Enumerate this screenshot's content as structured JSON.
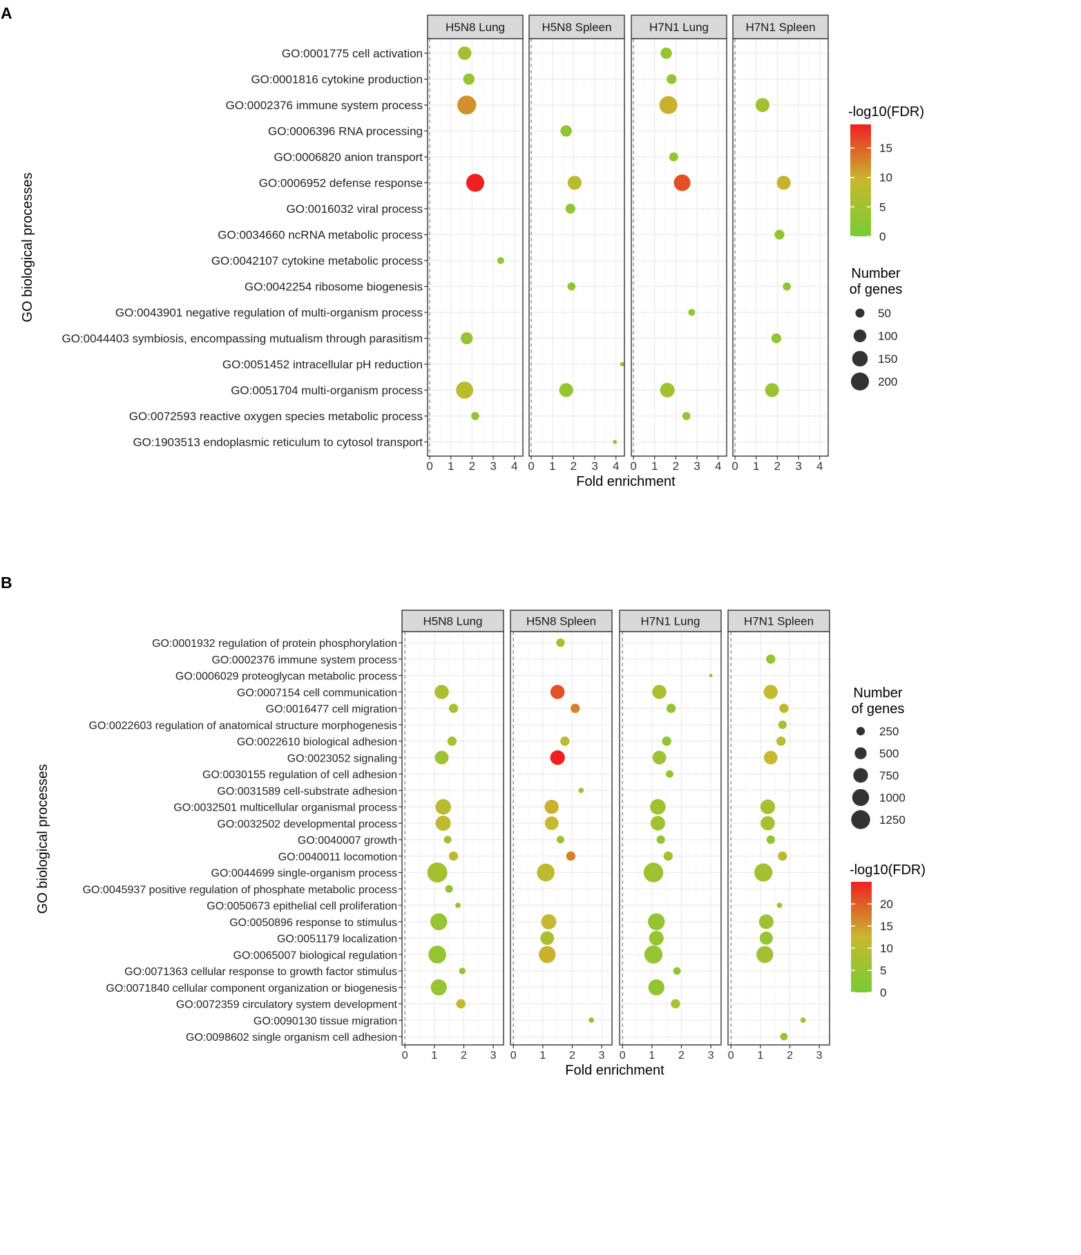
{
  "panel_labels": [
    "A",
    "B"
  ],
  "colors": {
    "low": "#77CC33",
    "mid": "#C8B830",
    "high": "#F02020",
    "strip_bg": "#D9D9D9",
    "grid": "#EBEBEB",
    "frame": "#333333",
    "dash": "#888888"
  },
  "chart_data": [
    {
      "id": "A",
      "type": "scatter",
      "panel_label": "A",
      "xlabel": "Fold enrichment",
      "ylabel": "GO biological processes",
      "xlim": [
        -0.1,
        4.4
      ],
      "xticks": [
        0,
        1,
        2,
        3,
        4
      ],
      "facets": [
        "H5N8 Lung",
        "H5N8 Spleen",
        "H7N1 Lung",
        "H7N1 Spleen"
      ],
      "categories": [
        "GO:0001775 cell activation",
        "GO:0001816 cytokine production",
        "GO:0002376 immune system process",
        "GO:0006396 RNA processing",
        "GO:0006820 anion transport",
        "GO:0006952 defense response",
        "GO:0016032 viral process",
        "GO:0034660 ncRNA metabolic process",
        "GO:0042107 cytokine metabolic process",
        "GO:0042254 ribosome biogenesis",
        "GO:0043901 negative regulation of multi-organism process",
        "GO:0044403 symbiosis, encompassing mutualism through parasitism",
        "GO:0051452 intracellular pH reduction",
        "GO:0051704 multi-organism process",
        "GO:0072593 reactive oxygen species metabolic process",
        "GO:1903513 endoplasmic reticulum to cytosol transport"
      ],
      "color_legend": {
        "title": "-log10(FDR)",
        "min": 0,
        "max": 19,
        "ticks": [
          0,
          5,
          10,
          15
        ]
      },
      "size_legend": {
        "title": [
          "Number",
          "of genes"
        ],
        "values": [
          50,
          100,
          150,
          200
        ],
        "max": 230
      },
      "points": [
        {
          "facet": 0,
          "cat": 0,
          "x": 1.65,
          "n": 110,
          "fdr": 5
        },
        {
          "facet": 0,
          "cat": 1,
          "x": 1.85,
          "n": 80,
          "fdr": 4
        },
        {
          "facet": 0,
          "cat": 2,
          "x": 1.75,
          "n": 220,
          "fdr": 12
        },
        {
          "facet": 0,
          "cat": 5,
          "x": 2.15,
          "n": 200,
          "fdr": 19
        },
        {
          "facet": 0,
          "cat": 8,
          "x": 3.35,
          "n": 30,
          "fdr": 3
        },
        {
          "facet": 0,
          "cat": 11,
          "x": 1.75,
          "n": 90,
          "fdr": 4
        },
        {
          "facet": 0,
          "cat": 13,
          "x": 1.65,
          "n": 180,
          "fdr": 8
        },
        {
          "facet": 0,
          "cat": 14,
          "x": 2.15,
          "n": 40,
          "fdr": 3
        },
        {
          "facet": 1,
          "cat": 3,
          "x": 1.65,
          "n": 80,
          "fdr": 3
        },
        {
          "facet": 1,
          "cat": 5,
          "x": 2.05,
          "n": 120,
          "fdr": 8
        },
        {
          "facet": 1,
          "cat": 6,
          "x": 1.85,
          "n": 60,
          "fdr": 3
        },
        {
          "facet": 1,
          "cat": 9,
          "x": 1.9,
          "n": 40,
          "fdr": 3
        },
        {
          "facet": 1,
          "cat": 12,
          "x": 4.3,
          "n": 12,
          "fdr": 2
        },
        {
          "facet": 1,
          "cat": 13,
          "x": 1.65,
          "n": 120,
          "fdr": 4
        },
        {
          "facet": 1,
          "cat": 15,
          "x": 3.95,
          "n": 10,
          "fdr": 2
        },
        {
          "facet": 2,
          "cat": 0,
          "x": 1.55,
          "n": 80,
          "fdr": 4
        },
        {
          "facet": 2,
          "cat": 1,
          "x": 1.8,
          "n": 60,
          "fdr": 3
        },
        {
          "facet": 2,
          "cat": 2,
          "x": 1.65,
          "n": 200,
          "fdr": 10
        },
        {
          "facet": 2,
          "cat": 4,
          "x": 1.9,
          "n": 50,
          "fdr": 3
        },
        {
          "facet": 2,
          "cat": 5,
          "x": 2.3,
          "n": 170,
          "fdr": 16
        },
        {
          "facet": 2,
          "cat": 10,
          "x": 2.75,
          "n": 30,
          "fdr": 3
        },
        {
          "facet": 2,
          "cat": 13,
          "x": 1.6,
          "n": 130,
          "fdr": 5
        },
        {
          "facet": 2,
          "cat": 14,
          "x": 2.5,
          "n": 40,
          "fdr": 3
        },
        {
          "facet": 3,
          "cat": 2,
          "x": 1.3,
          "n": 120,
          "fdr": 5
        },
        {
          "facet": 3,
          "cat": 5,
          "x": 2.3,
          "n": 120,
          "fdr": 10
        },
        {
          "facet": 3,
          "cat": 7,
          "x": 2.1,
          "n": 60,
          "fdr": 3
        },
        {
          "facet": 3,
          "cat": 9,
          "x": 2.45,
          "n": 40,
          "fdr": 3
        },
        {
          "facet": 3,
          "cat": 11,
          "x": 1.95,
          "n": 60,
          "fdr": 3
        },
        {
          "facet": 3,
          "cat": 13,
          "x": 1.75,
          "n": 120,
          "fdr": 4
        }
      ]
    },
    {
      "id": "B",
      "type": "scatter",
      "panel_label": "B",
      "xlabel": "Fold enrichment",
      "ylabel": "GO biological processes",
      "xlim": [
        -0.1,
        3.35
      ],
      "xticks": [
        0,
        1,
        2,
        3
      ],
      "facets": [
        "H5N8 Lung",
        "H5N8 Spleen",
        "H7N1 Lung",
        "H7N1 Spleen"
      ],
      "categories": [
        "GO:0001932 regulation of protein phosphorylation",
        "GO:0002376 immune system process",
        "GO:0006029 proteoglycan metabolic process",
        "GO:0007154 cell communication",
        "GO:0016477 cell migration",
        "GO:0022603 regulation of anatomical structure morphogenesis",
        "GO:0022610 biological adhesion",
        "GO:0023052 signaling",
        "GO:0030155 regulation of cell adhesion",
        "GO:0031589 cell-substrate adhesion",
        "GO:0032501 multicellular organismal process",
        "GO:0032502 developmental process",
        "GO:0040007 growth",
        "GO:0040011 locomotion",
        "GO:0044699 single-organism process",
        "GO:0045937 positive regulation of phosphate metabolic process",
        "GO:0050673 epithelial cell proliferation",
        "GO:0050896 response to stimulus",
        "GO:0051179 localization",
        "GO:0065007 biological regulation",
        "GO:0071363 cellular response to growth factor stimulus",
        "GO:0071840 cellular component organization or biogenesis",
        "GO:0072359 circulatory system development",
        "GO:0090130 tissue migration",
        "GO:0098602 single organism cell adhesion"
      ],
      "color_legend": {
        "title": "-log10(FDR)",
        "min": 0,
        "max": 25,
        "ticks": [
          0,
          5,
          10,
          15,
          20
        ]
      },
      "size_legend": {
        "title": [
          "Number",
          "of genes"
        ],
        "values": [
          250,
          500,
          750,
          1000,
          1250
        ],
        "max": 1500
      },
      "points": [
        {
          "facet": 0,
          "cat": 3,
          "x": 1.25,
          "n": 700,
          "fdr": 8
        },
        {
          "facet": 0,
          "cat": 4,
          "x": 1.65,
          "n": 300,
          "fdr": 8
        },
        {
          "facet": 0,
          "cat": 6,
          "x": 1.6,
          "n": 300,
          "fdr": 8
        },
        {
          "facet": 0,
          "cat": 7,
          "x": 1.25,
          "n": 650,
          "fdr": 6
        },
        {
          "facet": 0,
          "cat": 10,
          "x": 1.3,
          "n": 850,
          "fdr": 10
        },
        {
          "facet": 0,
          "cat": 11,
          "x": 1.3,
          "n": 800,
          "fdr": 11
        },
        {
          "facet": 0,
          "cat": 12,
          "x": 1.45,
          "n": 200,
          "fdr": 5
        },
        {
          "facet": 0,
          "cat": 13,
          "x": 1.65,
          "n": 300,
          "fdr": 11
        },
        {
          "facet": 0,
          "cat": 14,
          "x": 1.1,
          "n": 1400,
          "fdr": 7
        },
        {
          "facet": 0,
          "cat": 15,
          "x": 1.5,
          "n": 200,
          "fdr": 4
        },
        {
          "facet": 0,
          "cat": 16,
          "x": 1.8,
          "n": 100,
          "fdr": 4
        },
        {
          "facet": 0,
          "cat": 17,
          "x": 1.15,
          "n": 1000,
          "fdr": 5
        },
        {
          "facet": 0,
          "cat": 19,
          "x": 1.1,
          "n": 1100,
          "fdr": 5
        },
        {
          "facet": 0,
          "cat": 20,
          "x": 1.95,
          "n": 150,
          "fdr": 4
        },
        {
          "facet": 0,
          "cat": 21,
          "x": 1.15,
          "n": 900,
          "fdr": 5
        },
        {
          "facet": 0,
          "cat": 22,
          "x": 1.9,
          "n": 300,
          "fdr": 12
        },
        {
          "facet": 1,
          "cat": 0,
          "x": 1.6,
          "n": 250,
          "fdr": 6
        },
        {
          "facet": 1,
          "cat": 3,
          "x": 1.5,
          "n": 700,
          "fdr": 21
        },
        {
          "facet": 1,
          "cat": 4,
          "x": 2.1,
          "n": 300,
          "fdr": 17
        },
        {
          "facet": 1,
          "cat": 6,
          "x": 1.75,
          "n": 300,
          "fdr": 10
        },
        {
          "facet": 1,
          "cat": 7,
          "x": 1.5,
          "n": 750,
          "fdr": 25
        },
        {
          "facet": 1,
          "cat": 9,
          "x": 2.3,
          "n": 100,
          "fdr": 5
        },
        {
          "facet": 1,
          "cat": 10,
          "x": 1.3,
          "n": 700,
          "fdr": 13
        },
        {
          "facet": 1,
          "cat": 11,
          "x": 1.3,
          "n": 650,
          "fdr": 12
        },
        {
          "facet": 1,
          "cat": 12,
          "x": 1.6,
          "n": 200,
          "fdr": 5
        },
        {
          "facet": 1,
          "cat": 13,
          "x": 1.95,
          "n": 300,
          "fdr": 17
        },
        {
          "facet": 1,
          "cat": 14,
          "x": 1.1,
          "n": 1100,
          "fdr": 11
        },
        {
          "facet": 1,
          "cat": 17,
          "x": 1.2,
          "n": 800,
          "fdr": 12
        },
        {
          "facet": 1,
          "cat": 18,
          "x": 1.15,
          "n": 650,
          "fdr": 8
        },
        {
          "facet": 1,
          "cat": 19,
          "x": 1.15,
          "n": 1000,
          "fdr": 13
        },
        {
          "facet": 1,
          "cat": 23,
          "x": 2.65,
          "n": 100,
          "fdr": 5
        },
        {
          "facet": 2,
          "cat": 2,
          "x": 3.0,
          "n": 40,
          "fdr": 4
        },
        {
          "facet": 2,
          "cat": 3,
          "x": 1.25,
          "n": 700,
          "fdr": 8
        },
        {
          "facet": 2,
          "cat": 4,
          "x": 1.65,
          "n": 300,
          "fdr": 5
        },
        {
          "facet": 2,
          "cat": 6,
          "x": 1.5,
          "n": 300,
          "fdr": 4
        },
        {
          "facet": 2,
          "cat": 7,
          "x": 1.25,
          "n": 650,
          "fdr": 6
        },
        {
          "facet": 2,
          "cat": 8,
          "x": 1.6,
          "n": 200,
          "fdr": 4
        },
        {
          "facet": 2,
          "cat": 10,
          "x": 1.2,
          "n": 850,
          "fdr": 6
        },
        {
          "facet": 2,
          "cat": 11,
          "x": 1.2,
          "n": 750,
          "fdr": 6
        },
        {
          "facet": 2,
          "cat": 12,
          "x": 1.3,
          "n": 250,
          "fdr": 4
        },
        {
          "facet": 2,
          "cat": 13,
          "x": 1.55,
          "n": 300,
          "fdr": 7
        },
        {
          "facet": 2,
          "cat": 14,
          "x": 1.05,
          "n": 1350,
          "fdr": 6
        },
        {
          "facet": 2,
          "cat": 17,
          "x": 1.15,
          "n": 1000,
          "fdr": 5
        },
        {
          "facet": 2,
          "cat": 18,
          "x": 1.15,
          "n": 750,
          "fdr": 5
        },
        {
          "facet": 2,
          "cat": 19,
          "x": 1.05,
          "n": 1150,
          "fdr": 5
        },
        {
          "facet": 2,
          "cat": 20,
          "x": 1.85,
          "n": 200,
          "fdr": 4
        },
        {
          "facet": 2,
          "cat": 21,
          "x": 1.15,
          "n": 900,
          "fdr": 4
        },
        {
          "facet": 2,
          "cat": 22,
          "x": 1.8,
          "n": 300,
          "fdr": 8
        },
        {
          "facet": 3,
          "cat": 1,
          "x": 1.35,
          "n": 300,
          "fdr": 5
        },
        {
          "facet": 3,
          "cat": 3,
          "x": 1.35,
          "n": 700,
          "fdr": 12
        },
        {
          "facet": 3,
          "cat": 4,
          "x": 1.8,
          "n": 300,
          "fdr": 11
        },
        {
          "facet": 3,
          "cat": 5,
          "x": 1.75,
          "n": 250,
          "fdr": 7
        },
        {
          "facet": 3,
          "cat": 6,
          "x": 1.7,
          "n": 300,
          "fdr": 10
        },
        {
          "facet": 3,
          "cat": 7,
          "x": 1.35,
          "n": 650,
          "fdr": 12
        },
        {
          "facet": 3,
          "cat": 10,
          "x": 1.25,
          "n": 750,
          "fdr": 7
        },
        {
          "facet": 3,
          "cat": 11,
          "x": 1.25,
          "n": 700,
          "fdr": 7
        },
        {
          "facet": 3,
          "cat": 12,
          "x": 1.35,
          "n": 250,
          "fdr": 4
        },
        {
          "facet": 3,
          "cat": 13,
          "x": 1.75,
          "n": 300,
          "fdr": 11
        },
        {
          "facet": 3,
          "cat": 14,
          "x": 1.1,
          "n": 1150,
          "fdr": 7
        },
        {
          "facet": 3,
          "cat": 16,
          "x": 1.65,
          "n": 100,
          "fdr": 4
        },
        {
          "facet": 3,
          "cat": 17,
          "x": 1.2,
          "n": 750,
          "fdr": 6
        },
        {
          "facet": 3,
          "cat": 18,
          "x": 1.2,
          "n": 600,
          "fdr": 5
        },
        {
          "facet": 3,
          "cat": 19,
          "x": 1.15,
          "n": 1000,
          "fdr": 7
        },
        {
          "facet": 3,
          "cat": 23,
          "x": 2.45,
          "n": 100,
          "fdr": 5
        },
        {
          "facet": 3,
          "cat": 24,
          "x": 1.8,
          "n": 200,
          "fdr": 4
        }
      ]
    }
  ]
}
